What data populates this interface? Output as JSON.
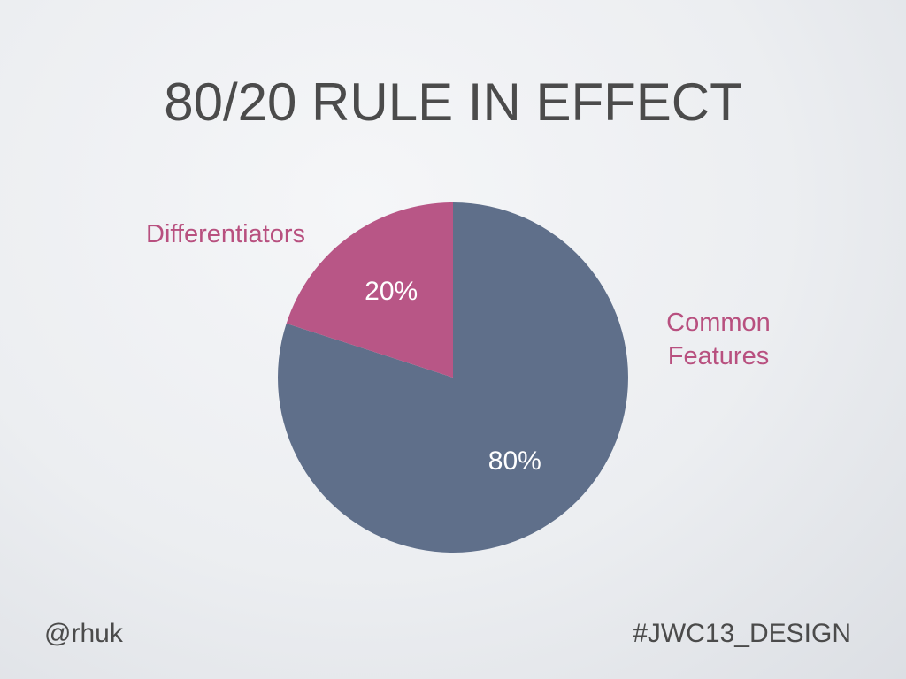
{
  "chart_data": {
    "type": "pie",
    "title": "80/20 RULE IN EFFECT",
    "categories": [
      "Common Features",
      "Differentiators"
    ],
    "values": [
      80,
      20
    ],
    "value_labels": [
      "80%",
      "20%"
    ],
    "colors": [
      "#5f6f8a",
      "#b85686"
    ],
    "label_color": "#b8507f"
  },
  "footer": {
    "left": "@rhuk",
    "right": "#JWC13_DESIGN"
  }
}
